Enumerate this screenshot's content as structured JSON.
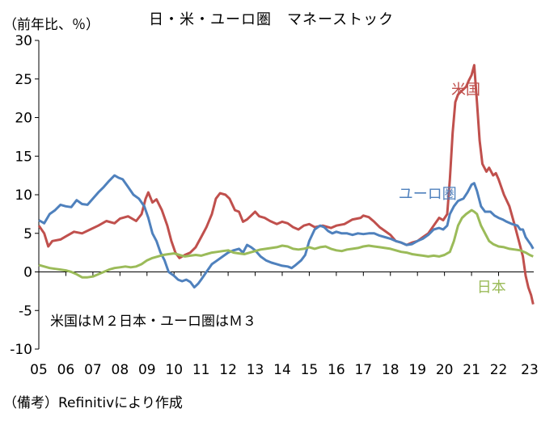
{
  "chart_data": {
    "type": "line",
    "title": "日・米・ユーロ圏　マネーストック",
    "unit_label": "（前年比、％）",
    "note": "米国はＭ２日本・ユーロ圏はＭ３",
    "source": "（備考）Refinitivにより作成",
    "x_tick_labels": [
      "05",
      "06",
      "07",
      "08",
      "09",
      "10",
      "11",
      "12",
      "13",
      "14",
      "15",
      "16",
      "17",
      "18",
      "19",
      "20",
      "21",
      "22",
      "23"
    ],
    "y_ticks": [
      30,
      25,
      20,
      15,
      10,
      5,
      0,
      -5,
      -10
    ],
    "ylim": [
      -10,
      30
    ],
    "xlim": [
      2005.0,
      2023.3
    ],
    "grid": false,
    "series": [
      {
        "name": "米国",
        "color": "#c0504d",
        "points": [
          [
            2005.0,
            6.0
          ],
          [
            2005.2,
            5.0
          ],
          [
            2005.35,
            3.3
          ],
          [
            2005.5,
            4.0
          ],
          [
            2005.8,
            4.2
          ],
          [
            2006.0,
            4.6
          ],
          [
            2006.3,
            5.2
          ],
          [
            2006.6,
            5.0
          ],
          [
            2006.9,
            5.5
          ],
          [
            2007.2,
            6.0
          ],
          [
            2007.5,
            6.6
          ],
          [
            2007.8,
            6.3
          ],
          [
            2008.0,
            6.9
          ],
          [
            2008.3,
            7.2
          ],
          [
            2008.6,
            6.6
          ],
          [
            2008.8,
            7.5
          ],
          [
            2008.95,
            9.5
          ],
          [
            2009.05,
            10.3
          ],
          [
            2009.2,
            9.0
          ],
          [
            2009.35,
            9.4
          ],
          [
            2009.55,
            8.0
          ],
          [
            2009.75,
            6.0
          ],
          [
            2009.9,
            4.0
          ],
          [
            2010.05,
            2.5
          ],
          [
            2010.2,
            1.8
          ],
          [
            2010.4,
            2.2
          ],
          [
            2010.6,
            2.5
          ],
          [
            2010.8,
            3.2
          ],
          [
            2011.0,
            4.5
          ],
          [
            2011.2,
            5.8
          ],
          [
            2011.4,
            7.5
          ],
          [
            2011.55,
            9.5
          ],
          [
            2011.7,
            10.2
          ],
          [
            2011.9,
            10.0
          ],
          [
            2012.05,
            9.5
          ],
          [
            2012.25,
            8.0
          ],
          [
            2012.4,
            7.8
          ],
          [
            2012.55,
            6.5
          ],
          [
            2012.7,
            6.8
          ],
          [
            2012.85,
            7.3
          ],
          [
            2013.0,
            7.8
          ],
          [
            2013.15,
            7.2
          ],
          [
            2013.35,
            7.0
          ],
          [
            2013.55,
            6.6
          ],
          [
            2013.8,
            6.2
          ],
          [
            2014.0,
            6.5
          ],
          [
            2014.2,
            6.3
          ],
          [
            2014.4,
            5.8
          ],
          [
            2014.6,
            5.5
          ],
          [
            2014.8,
            6.0
          ],
          [
            2015.0,
            6.2
          ],
          [
            2015.2,
            5.8
          ],
          [
            2015.5,
            6.0
          ],
          [
            2015.8,
            5.7
          ],
          [
            2016.0,
            6.0
          ],
          [
            2016.3,
            6.2
          ],
          [
            2016.6,
            6.8
          ],
          [
            2016.9,
            7.0
          ],
          [
            2017.0,
            7.3
          ],
          [
            2017.2,
            7.1
          ],
          [
            2017.4,
            6.5
          ],
          [
            2017.6,
            5.8
          ],
          [
            2017.8,
            5.3
          ],
          [
            2018.0,
            4.8
          ],
          [
            2018.2,
            4.0
          ],
          [
            2018.4,
            3.8
          ],
          [
            2018.6,
            3.5
          ],
          [
            2018.8,
            3.8
          ],
          [
            2019.0,
            4.0
          ],
          [
            2019.2,
            4.5
          ],
          [
            2019.4,
            5.0
          ],
          [
            2019.6,
            6.0
          ],
          [
            2019.8,
            7.0
          ],
          [
            2019.95,
            6.7
          ],
          [
            2020.1,
            7.5
          ],
          [
            2020.2,
            12.0
          ],
          [
            2020.3,
            18.0
          ],
          [
            2020.4,
            22.0
          ],
          [
            2020.5,
            23.0
          ],
          [
            2020.65,
            23.5
          ],
          [
            2020.8,
            24.0
          ],
          [
            2020.9,
            24.8
          ],
          [
            2021.0,
            25.5
          ],
          [
            2021.1,
            26.8
          ],
          [
            2021.2,
            22.0
          ],
          [
            2021.3,
            17.0
          ],
          [
            2021.4,
            14.0
          ],
          [
            2021.55,
            13.0
          ],
          [
            2021.65,
            13.5
          ],
          [
            2021.8,
            12.5
          ],
          [
            2021.9,
            12.8
          ],
          [
            2022.0,
            12.0
          ],
          [
            2022.2,
            10.0
          ],
          [
            2022.4,
            8.5
          ],
          [
            2022.6,
            6.0
          ],
          [
            2022.75,
            4.0
          ],
          [
            2022.9,
            2.0
          ],
          [
            2023.0,
            -0.5
          ],
          [
            2023.1,
            -2.0
          ],
          [
            2023.2,
            -3.0
          ],
          [
            2023.28,
            -4.2
          ]
        ]
      },
      {
        "name": "ユーロ圏",
        "color": "#4f81bd",
        "points": [
          [
            2005.0,
            6.7
          ],
          [
            2005.2,
            6.3
          ],
          [
            2005.4,
            7.5
          ],
          [
            2005.6,
            8.0
          ],
          [
            2005.8,
            8.7
          ],
          [
            2006.0,
            8.5
          ],
          [
            2006.2,
            8.4
          ],
          [
            2006.4,
            9.3
          ],
          [
            2006.6,
            8.8
          ],
          [
            2006.8,
            8.7
          ],
          [
            2007.0,
            9.5
          ],
          [
            2007.2,
            10.3
          ],
          [
            2007.4,
            11.0
          ],
          [
            2007.6,
            11.8
          ],
          [
            2007.8,
            12.5
          ],
          [
            2007.95,
            12.2
          ],
          [
            2008.1,
            12.0
          ],
          [
            2008.3,
            11.0
          ],
          [
            2008.5,
            10.0
          ],
          [
            2008.7,
            9.5
          ],
          [
            2008.9,
            8.5
          ],
          [
            2009.05,
            7.0
          ],
          [
            2009.2,
            5.0
          ],
          [
            2009.35,
            4.0
          ],
          [
            2009.5,
            2.5
          ],
          [
            2009.65,
            1.5
          ],
          [
            2009.8,
            0.0
          ],
          [
            2010.0,
            -0.5
          ],
          [
            2010.15,
            -1.0
          ],
          [
            2010.3,
            -1.2
          ],
          [
            2010.45,
            -1.0
          ],
          [
            2010.6,
            -1.3
          ],
          [
            2010.75,
            -2.0
          ],
          [
            2010.9,
            -1.5
          ],
          [
            2011.0,
            -1.0
          ],
          [
            2011.2,
            0.0
          ],
          [
            2011.4,
            1.0
          ],
          [
            2011.6,
            1.5
          ],
          [
            2011.8,
            2.0
          ],
          [
            2012.0,
            2.5
          ],
          [
            2012.2,
            2.8
          ],
          [
            2012.4,
            3.0
          ],
          [
            2012.55,
            2.5
          ],
          [
            2012.7,
            3.5
          ],
          [
            2012.85,
            3.2
          ],
          [
            2013.0,
            2.8
          ],
          [
            2013.2,
            2.0
          ],
          [
            2013.4,
            1.5
          ],
          [
            2013.6,
            1.2
          ],
          [
            2013.8,
            1.0
          ],
          [
            2014.0,
            0.8
          ],
          [
            2014.2,
            0.7
          ],
          [
            2014.35,
            0.5
          ],
          [
            2014.5,
            0.9
          ],
          [
            2014.7,
            1.5
          ],
          [
            2014.85,
            2.2
          ],
          [
            2015.0,
            4.0
          ],
          [
            2015.2,
            5.5
          ],
          [
            2015.4,
            6.0
          ],
          [
            2015.55,
            5.8
          ],
          [
            2015.7,
            5.3
          ],
          [
            2015.85,
            5.0
          ],
          [
            2016.0,
            5.2
          ],
          [
            2016.2,
            5.0
          ],
          [
            2016.4,
            5.0
          ],
          [
            2016.6,
            4.8
          ],
          [
            2016.8,
            5.0
          ],
          [
            2017.0,
            4.9
          ],
          [
            2017.2,
            5.0
          ],
          [
            2017.4,
            5.0
          ],
          [
            2017.6,
            4.7
          ],
          [
            2017.8,
            4.5
          ],
          [
            2018.0,
            4.3
          ],
          [
            2018.2,
            4.0
          ],
          [
            2018.4,
            3.8
          ],
          [
            2018.6,
            3.5
          ],
          [
            2018.8,
            3.6
          ],
          [
            2019.0,
            4.0
          ],
          [
            2019.2,
            4.3
          ],
          [
            2019.4,
            4.8
          ],
          [
            2019.6,
            5.5
          ],
          [
            2019.8,
            5.7
          ],
          [
            2019.95,
            5.5
          ],
          [
            2020.1,
            6.0
          ],
          [
            2020.2,
            7.5
          ],
          [
            2020.35,
            8.5
          ],
          [
            2020.5,
            9.2
          ],
          [
            2020.7,
            9.5
          ],
          [
            2020.85,
            10.3
          ],
          [
            2021.0,
            11.3
          ],
          [
            2021.1,
            11.5
          ],
          [
            2021.2,
            10.5
          ],
          [
            2021.35,
            8.5
          ],
          [
            2021.5,
            7.8
          ],
          [
            2021.7,
            7.8
          ],
          [
            2021.85,
            7.3
          ],
          [
            2022.0,
            7.0
          ],
          [
            2022.15,
            6.8
          ],
          [
            2022.3,
            6.5
          ],
          [
            2022.5,
            6.2
          ],
          [
            2022.7,
            6.0
          ],
          [
            2022.8,
            5.5
          ],
          [
            2022.9,
            5.5
          ],
          [
            2023.0,
            4.5
          ],
          [
            2023.1,
            4.0
          ],
          [
            2023.2,
            3.5
          ],
          [
            2023.28,
            3.0
          ]
        ]
      },
      {
        "name": "日本",
        "color": "#9bbb59",
        "points": [
          [
            2005.0,
            0.9
          ],
          [
            2005.2,
            0.7
          ],
          [
            2005.4,
            0.5
          ],
          [
            2005.6,
            0.4
          ],
          [
            2005.8,
            0.3
          ],
          [
            2006.0,
            0.2
          ],
          [
            2006.2,
            0.0
          ],
          [
            2006.4,
            -0.3
          ],
          [
            2006.6,
            -0.7
          ],
          [
            2006.8,
            -0.7
          ],
          [
            2007.0,
            -0.6
          ],
          [
            2007.2,
            -0.3
          ],
          [
            2007.4,
            0.0
          ],
          [
            2007.6,
            0.3
          ],
          [
            2007.8,
            0.5
          ],
          [
            2008.0,
            0.6
          ],
          [
            2008.2,
            0.7
          ],
          [
            2008.4,
            0.6
          ],
          [
            2008.6,
            0.7
          ],
          [
            2008.8,
            1.0
          ],
          [
            2009.0,
            1.5
          ],
          [
            2009.2,
            1.8
          ],
          [
            2009.4,
            2.0
          ],
          [
            2009.6,
            2.2
          ],
          [
            2009.8,
            2.3
          ],
          [
            2010.0,
            2.4
          ],
          [
            2010.2,
            2.2
          ],
          [
            2010.4,
            2.0
          ],
          [
            2010.6,
            2.1
          ],
          [
            2010.8,
            2.2
          ],
          [
            2011.0,
            2.1
          ],
          [
            2011.2,
            2.3
          ],
          [
            2011.4,
            2.5
          ],
          [
            2011.6,
            2.6
          ],
          [
            2011.8,
            2.7
          ],
          [
            2012.0,
            2.8
          ],
          [
            2012.2,
            2.5
          ],
          [
            2012.4,
            2.4
          ],
          [
            2012.6,
            2.3
          ],
          [
            2012.8,
            2.5
          ],
          [
            2013.0,
            2.7
          ],
          [
            2013.2,
            2.9
          ],
          [
            2013.4,
            3.0
          ],
          [
            2013.6,
            3.1
          ],
          [
            2013.8,
            3.2
          ],
          [
            2014.0,
            3.4
          ],
          [
            2014.2,
            3.3
          ],
          [
            2014.4,
            3.0
          ],
          [
            2014.6,
            2.9
          ],
          [
            2014.8,
            3.0
          ],
          [
            2015.0,
            3.2
          ],
          [
            2015.2,
            3.0
          ],
          [
            2015.4,
            3.2
          ],
          [
            2015.6,
            3.3
          ],
          [
            2015.8,
            3.0
          ],
          [
            2016.0,
            2.8
          ],
          [
            2016.2,
            2.7
          ],
          [
            2016.4,
            2.9
          ],
          [
            2016.6,
            3.0
          ],
          [
            2016.8,
            3.1
          ],
          [
            2017.0,
            3.3
          ],
          [
            2017.2,
            3.4
          ],
          [
            2017.4,
            3.3
          ],
          [
            2017.6,
            3.2
          ],
          [
            2017.8,
            3.1
          ],
          [
            2018.0,
            3.0
          ],
          [
            2018.2,
            2.8
          ],
          [
            2018.4,
            2.6
          ],
          [
            2018.6,
            2.5
          ],
          [
            2018.8,
            2.3
          ],
          [
            2019.0,
            2.2
          ],
          [
            2019.2,
            2.1
          ],
          [
            2019.4,
            2.0
          ],
          [
            2019.6,
            2.1
          ],
          [
            2019.8,
            2.0
          ],
          [
            2020.0,
            2.2
          ],
          [
            2020.2,
            2.6
          ],
          [
            2020.35,
            4.0
          ],
          [
            2020.5,
            6.0
          ],
          [
            2020.65,
            7.0
          ],
          [
            2020.8,
            7.5
          ],
          [
            2021.0,
            8.0
          ],
          [
            2021.1,
            7.8
          ],
          [
            2021.2,
            7.5
          ],
          [
            2021.35,
            6.0
          ],
          [
            2021.5,
            5.0
          ],
          [
            2021.65,
            4.0
          ],
          [
            2021.8,
            3.6
          ],
          [
            2022.0,
            3.3
          ],
          [
            2022.2,
            3.2
          ],
          [
            2022.4,
            3.0
          ],
          [
            2022.6,
            2.9
          ],
          [
            2022.8,
            2.8
          ],
          [
            2023.0,
            2.5
          ],
          [
            2023.15,
            2.2
          ],
          [
            2023.28,
            2.0
          ]
        ]
      }
    ],
    "series_labels": [
      {
        "name": "米国",
        "x": 2020.25,
        "y": 23.0
      },
      {
        "name": "ユーロ圏",
        "x": 2018.3,
        "y": 9.5
      },
      {
        "name": "日本",
        "x": 2021.2,
        "y": -2.6
      }
    ]
  }
}
